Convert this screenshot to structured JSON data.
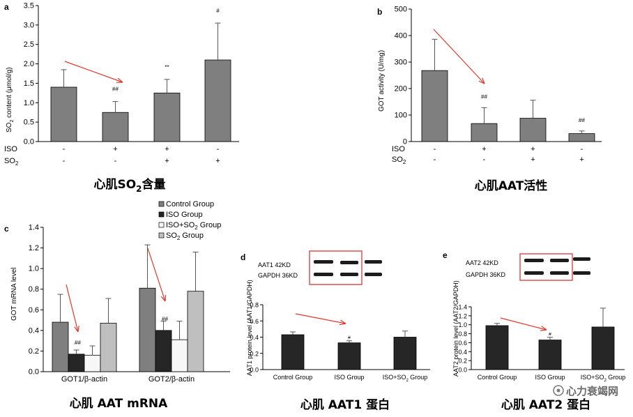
{
  "colors": {
    "bar_gray": "#7f7f7f",
    "bar_dark": "#262626",
    "bar_white": "#f7f7f7",
    "bar_light": "#bfbfbf",
    "arrow_red": "#e03a2f",
    "box_red": "#d9363e",
    "axis": "#000000"
  },
  "chart_data": [
    {
      "type": "bar",
      "panel_letter": "a",
      "title": "心肌SO₂含量",
      "title_parts": {
        "pre": "心肌SO",
        "sub": "2",
        "post": "含量"
      },
      "ylabel_parts": {
        "pre": "SO",
        "sub": "2",
        "post": " content (μmol/g)"
      },
      "ylim": [
        0,
        3.5
      ],
      "ticks": [
        0.0,
        0.5,
        1.0,
        1.5,
        2.0,
        2.5,
        3.0,
        3.5
      ],
      "values": [
        1.4,
        0.75,
        1.25,
        2.1
      ],
      "errors": [
        0.45,
        0.28,
        0.35,
        0.95
      ],
      "annotations": [
        "",
        "##",
        "**",
        "#"
      ],
      "rows": [
        {
          "label": "ISO",
          "label_sub": "",
          "signs": [
            "-",
            "+",
            "+",
            "-"
          ]
        },
        {
          "label": "SO",
          "label_sub": "2",
          "signs": [
            "-",
            "-",
            "+",
            "+"
          ]
        }
      ]
    },
    {
      "type": "bar",
      "panel_letter": "b",
      "title": "心肌AAT活性",
      "ylabel": "GOT activity (U/mg)",
      "ylim": [
        0,
        500
      ],
      "ticks": [
        0,
        100,
        200,
        300,
        400,
        500
      ],
      "values": [
        268,
        68,
        88,
        30
      ],
      "errors": [
        118,
        60,
        68,
        10
      ],
      "annotations": [
        "",
        "##",
        "",
        "##"
      ],
      "rows": [
        {
          "label": "ISO",
          "label_sub": "",
          "signs": [
            "-",
            "+",
            "+",
            "-"
          ]
        },
        {
          "label": "SO",
          "label_sub": "2",
          "signs": [
            "-",
            "-",
            "+",
            "+"
          ]
        }
      ]
    },
    {
      "type": "bar",
      "panel_letter": "c",
      "title": "心肌 AAT mRNA",
      "ylabel": "GOT mRNA level",
      "ylim": [
        0,
        1.4
      ],
      "ticks": [
        0,
        0.2,
        0.4,
        0.6,
        0.8,
        1.0,
        1.2,
        1.4
      ],
      "categories": [
        "GOT1/β-actin",
        "GOT2/β-actin"
      ],
      "series": [
        {
          "name": "Control Group",
          "name_parts": [
            "Control Group"
          ],
          "color": "#7f7f7f",
          "values": [
            0.48,
            0.81
          ],
          "errors": [
            0.27,
            0.42
          ],
          "annotations": [
            "",
            ""
          ]
        },
        {
          "name": "ISO Group",
          "name_parts": [
            "ISO Group"
          ],
          "color": "#262626",
          "values": [
            0.17,
            0.4
          ],
          "errors": [
            0.04,
            0.09
          ],
          "annotations": [
            "##",
            "##"
          ]
        },
        {
          "name": "ISO+SO2 Group",
          "name_parts": [
            "ISO+SO",
            "2",
            " Group"
          ],
          "color": "#f7f7f7",
          "values": [
            0.16,
            0.31
          ],
          "errors": [
            0.09,
            0.18
          ],
          "annotations": [
            "",
            ""
          ]
        },
        {
          "name": "SO2 Group",
          "name_parts": [
            "SO",
            "2",
            " Group"
          ],
          "color": "#bfbfbf",
          "values": [
            0.47,
            0.78
          ],
          "errors": [
            0.24,
            0.38
          ],
          "annotations": [
            "",
            ""
          ]
        }
      ]
    },
    {
      "type": "bar",
      "panel_letter": "d",
      "title": "心肌 AAT1 蛋白",
      "ylabel": "AAT1 protein level (AAT1/GAPDH)",
      "ylim": [
        0,
        0.8
      ],
      "ticks": [
        0,
        0.2,
        0.4,
        0.6,
        0.8
      ],
      "categories": [
        "Control Group",
        "ISO Group",
        "ISO+SO2 Group"
      ],
      "category_parts": [
        [
          "Control Group"
        ],
        [
          "ISO Group"
        ],
        [
          "ISO+SO",
          "2",
          " Group"
        ]
      ],
      "values": [
        0.43,
        0.33,
        0.4
      ],
      "errors": [
        0.035,
        0.025,
        0.075
      ],
      "annotations": [
        "",
        "#",
        ""
      ],
      "blot_labels": [
        "AAT1 42KD",
        "GAPDH 36KD"
      ]
    },
    {
      "type": "bar",
      "panel_letter": "e",
      "title": "心肌 AAT2 蛋白",
      "ylabel": "AAT2 protein level (AAT2/GAPDH)",
      "ylim": [
        0,
        1.4
      ],
      "ticks": [
        0,
        0.2,
        0.4,
        0.6,
        0.8,
        1.0,
        1.2,
        1.4
      ],
      "categories": [
        "Control Group",
        "ISO Group",
        "ISO+SO2 Group"
      ],
      "category_parts": [
        [
          "Control Group"
        ],
        [
          "ISO Group"
        ],
        [
          "ISO+SO",
          "2",
          " Group"
        ]
      ],
      "values": [
        0.98,
        0.66,
        0.95
      ],
      "errors": [
        0.05,
        0.06,
        0.42
      ],
      "annotations": [
        "",
        "#",
        ""
      ],
      "blot_labels": [
        "AAT2 42KD",
        "GAPDH 36KD"
      ]
    }
  ],
  "watermark": "心力衰竭网"
}
